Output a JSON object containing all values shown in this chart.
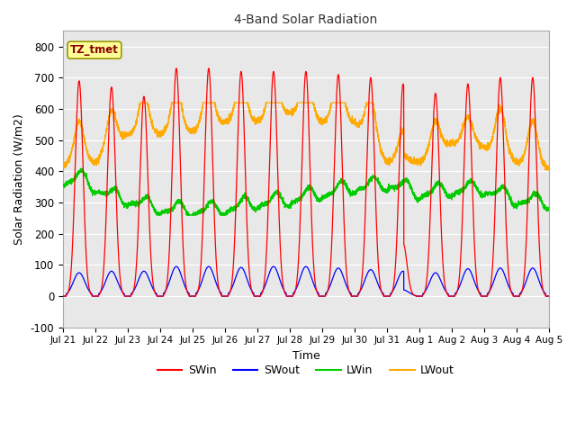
{
  "title": "4-Band Solar Radiation",
  "xlabel": "Time",
  "ylabel": "Solar Radiation (W/m2)",
  "label_box": "TZ_tmet",
  "ylim": [
    -100,
    850
  ],
  "yticks": [
    -100,
    0,
    100,
    200,
    300,
    400,
    500,
    600,
    700,
    800
  ],
  "bg_color": "#ffffff",
  "plot_bg": "#e8e8e8",
  "colors": {
    "SWin": "#ff0000",
    "SWout": "#0000ff",
    "LWin": "#00cc00",
    "LWout": "#ffaa00"
  },
  "legend_labels": [
    "SWin",
    "SWout",
    "LWin",
    "LWout"
  ],
  "x_tick_labels": [
    "Jul 21",
    "Jul 22",
    "Jul 23",
    "Jul 24",
    "Jul 25",
    "Jul 26",
    "Jul 27",
    "Jul 28",
    "Jul 29",
    "Jul 30",
    "Jul 31",
    "Aug 1",
    "Aug 2",
    "Aug 3",
    "Aug 4",
    "Aug 5"
  ],
  "n_days": 15,
  "pts_per_day": 288,
  "figsize": [
    6.4,
    4.8
  ],
  "dpi": 100
}
